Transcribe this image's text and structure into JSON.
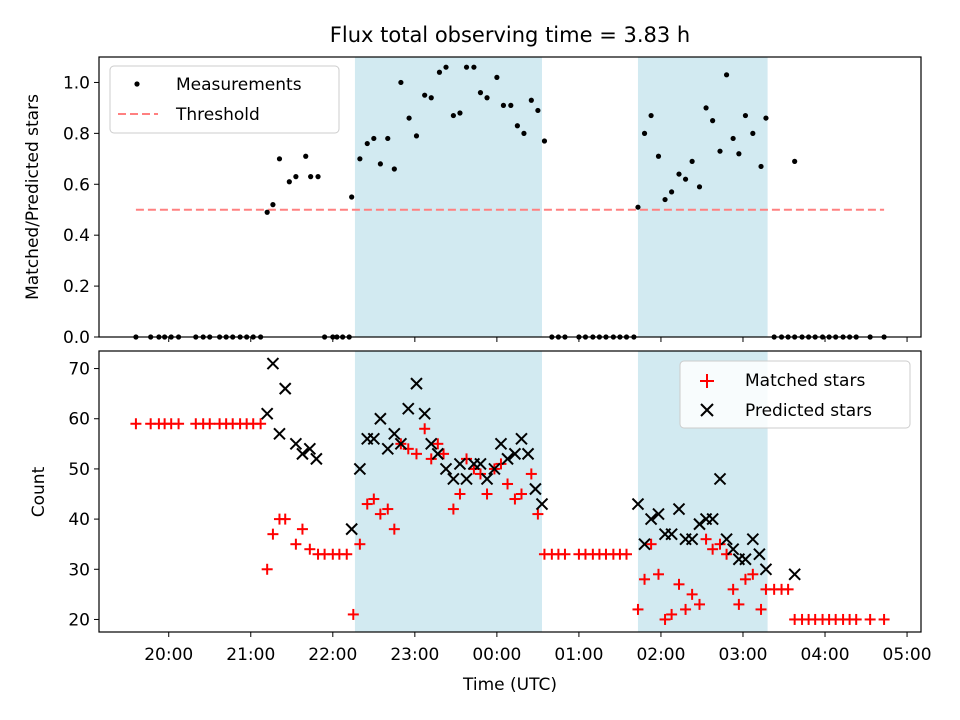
{
  "title": "Flux total observing time = 3.83 h",
  "colors": {
    "shade": "#add8e6",
    "matched": "#ff0000",
    "predicted": "#000000",
    "threshold": "#ff8080"
  },
  "chart_data": [
    {
      "type": "scatter",
      "ylabel": "Matched/Predicted stars",
      "ylim": [
        0,
        1.1
      ],
      "yticks": [
        "0.0",
        "0.2",
        "0.4",
        "0.6",
        "0.8",
        "1.0"
      ],
      "shaded_intervals_hours": [
        [
          22.27,
          24.55
        ],
        [
          25.72,
          27.3
        ]
      ],
      "legend": {
        "position": "upper-left",
        "measurements": "Measurements",
        "threshold": "Threshold"
      },
      "threshold": {
        "value": 0.5,
        "x_start_hours": 19.6,
        "x_end_hours": 28.72
      },
      "series": [
        {
          "name": "Measurements",
          "marker": "dot",
          "points": [
            [
              19.6,
              0
            ],
            [
              19.78,
              0
            ],
            [
              19.88,
              0
            ],
            [
              19.95,
              0
            ],
            [
              20.03,
              0
            ],
            [
              20.12,
              0
            ],
            [
              20.33,
              0
            ],
            [
              20.42,
              0
            ],
            [
              20.5,
              0
            ],
            [
              20.62,
              0
            ],
            [
              20.7,
              0
            ],
            [
              20.78,
              0
            ],
            [
              20.87,
              0
            ],
            [
              20.95,
              0
            ],
            [
              21.03,
              0
            ],
            [
              21.12,
              0
            ],
            [
              21.2,
              0.49
            ],
            [
              21.27,
              0.52
            ],
            [
              21.35,
              0.7
            ],
            [
              21.47,
              0.61
            ],
            [
              21.55,
              0.63
            ],
            [
              21.67,
              0.71
            ],
            [
              21.73,
              0.63
            ],
            [
              21.82,
              0.63
            ],
            [
              21.9,
              0
            ],
            [
              22.0,
              0
            ],
            [
              22.05,
              0
            ],
            [
              22.12,
              0
            ],
            [
              22.2,
              0
            ],
            [
              22.23,
              0.55
            ],
            [
              22.33,
              0.7
            ],
            [
              22.42,
              0.76
            ],
            [
              22.5,
              0.78
            ],
            [
              22.58,
              0.68
            ],
            [
              22.67,
              0.78
            ],
            [
              22.75,
              0.66
            ],
            [
              22.83,
              1.0
            ],
            [
              22.93,
              0.86
            ],
            [
              23.02,
              0.79
            ],
            [
              23.12,
              0.95
            ],
            [
              23.2,
              0.94
            ],
            [
              23.3,
              1.04
            ],
            [
              23.38,
              1.06
            ],
            [
              23.47,
              0.87
            ],
            [
              23.55,
              0.88
            ],
            [
              23.63,
              1.06
            ],
            [
              23.72,
              1.06
            ],
            [
              23.8,
              0.96
            ],
            [
              23.88,
              0.94
            ],
            [
              24.0,
              1.02
            ],
            [
              24.08,
              0.91
            ],
            [
              24.17,
              0.91
            ],
            [
              24.25,
              0.83
            ],
            [
              24.33,
              0.8
            ],
            [
              24.42,
              0.93
            ],
            [
              24.5,
              0.89
            ],
            [
              24.58,
              0.77
            ],
            [
              24.67,
              0
            ],
            [
              24.75,
              0
            ],
            [
              24.83,
              0
            ],
            [
              25.0,
              0
            ],
            [
              25.08,
              0
            ],
            [
              25.17,
              0
            ],
            [
              25.25,
              0
            ],
            [
              25.33,
              0
            ],
            [
              25.42,
              0
            ],
            [
              25.5,
              0
            ],
            [
              25.58,
              0
            ],
            [
              25.67,
              0
            ],
            [
              25.72,
              0.51
            ],
            [
              25.8,
              0.8
            ],
            [
              25.88,
              0.87
            ],
            [
              25.97,
              0.71
            ],
            [
              26.05,
              0.54
            ],
            [
              26.13,
              0.57
            ],
            [
              26.22,
              0.64
            ],
            [
              26.3,
              0.62
            ],
            [
              26.38,
              0.69
            ],
            [
              26.47,
              0.59
            ],
            [
              26.55,
              0.9
            ],
            [
              26.63,
              0.85
            ],
            [
              26.72,
              0.73
            ],
            [
              26.8,
              1.03
            ],
            [
              26.88,
              0.78
            ],
            [
              26.95,
              0.72
            ],
            [
              27.03,
              0.87
            ],
            [
              27.12,
              0.8
            ],
            [
              27.22,
              0.67
            ],
            [
              27.28,
              0.86
            ],
            [
              27.38,
              0
            ],
            [
              27.47,
              0
            ],
            [
              27.55,
              0
            ],
            [
              27.63,
              0
            ],
            [
              27.63,
              0.69
            ],
            [
              27.72,
              0
            ],
            [
              27.8,
              0
            ],
            [
              27.88,
              0
            ],
            [
              27.97,
              0
            ],
            [
              28.05,
              0
            ],
            [
              28.13,
              0
            ],
            [
              28.22,
              0
            ],
            [
              28.3,
              0
            ],
            [
              28.38,
              0
            ],
            [
              28.55,
              0
            ],
            [
              28.72,
              0
            ]
          ]
        }
      ]
    },
    {
      "type": "scatter",
      "xlabel": "Time (UTC)",
      "ylabel": "Count",
      "ylim": [
        17.5,
        73.5
      ],
      "yticks": [
        "20",
        "30",
        "40",
        "50",
        "60",
        "70"
      ],
      "xlim_hours": [
        19.15,
        29.17
      ],
      "xtick_hours": [
        20,
        21,
        22,
        23,
        24,
        25,
        26,
        27,
        28,
        29
      ],
      "xticks": [
        "20:00",
        "21:00",
        "22:00",
        "23:00",
        "00:00",
        "01:00",
        "02:00",
        "03:00",
        "04:00",
        "05:00"
      ],
      "shaded_intervals_hours": [
        [
          22.27,
          24.55
        ],
        [
          25.72,
          27.3
        ]
      ],
      "legend": {
        "position": "upper-right"
      },
      "series": [
        {
          "name": "Matched stars",
          "marker": "plus",
          "points": [
            [
              19.6,
              59
            ],
            [
              19.78,
              59
            ],
            [
              19.88,
              59
            ],
            [
              19.95,
              59
            ],
            [
              20.03,
              59
            ],
            [
              20.12,
              59
            ],
            [
              20.33,
              59
            ],
            [
              20.42,
              59
            ],
            [
              20.5,
              59
            ],
            [
              20.62,
              59
            ],
            [
              20.7,
              59
            ],
            [
              20.78,
              59
            ],
            [
              20.87,
              59
            ],
            [
              20.95,
              59
            ],
            [
              21.03,
              59
            ],
            [
              21.12,
              59
            ],
            [
              21.2,
              30
            ],
            [
              21.27,
              37
            ],
            [
              21.35,
              40
            ],
            [
              21.42,
              40
            ],
            [
              21.55,
              35
            ],
            [
              21.63,
              38
            ],
            [
              21.72,
              34
            ],
            [
              21.82,
              33
            ],
            [
              21.9,
              33
            ],
            [
              22.0,
              33
            ],
            [
              22.08,
              33
            ],
            [
              22.17,
              33
            ],
            [
              22.25,
              21
            ],
            [
              22.33,
              35
            ],
            [
              22.42,
              43
            ],
            [
              22.5,
              44
            ],
            [
              22.58,
              41
            ],
            [
              22.67,
              42
            ],
            [
              22.75,
              38
            ],
            [
              22.83,
              55
            ],
            [
              22.92,
              54
            ],
            [
              23.02,
              53
            ],
            [
              23.12,
              58
            ],
            [
              23.2,
              52
            ],
            [
              23.28,
              55
            ],
            [
              23.35,
              53
            ],
            [
              23.47,
              42
            ],
            [
              23.55,
              45
            ],
            [
              23.63,
              52
            ],
            [
              23.72,
              50
            ],
            [
              23.8,
              49
            ],
            [
              23.88,
              45
            ],
            [
              23.97,
              50
            ],
            [
              24.05,
              51
            ],
            [
              24.13,
              47
            ],
            [
              24.22,
              44
            ],
            [
              24.3,
              45
            ],
            [
              24.42,
              49
            ],
            [
              24.5,
              41
            ],
            [
              24.58,
              33
            ],
            [
              24.67,
              33
            ],
            [
              24.75,
              33
            ],
            [
              24.83,
              33
            ],
            [
              25.0,
              33
            ],
            [
              25.08,
              33
            ],
            [
              25.17,
              33
            ],
            [
              25.25,
              33
            ],
            [
              25.33,
              33
            ],
            [
              25.42,
              33
            ],
            [
              25.5,
              33
            ],
            [
              25.58,
              33
            ],
            [
              25.72,
              22
            ],
            [
              25.8,
              28
            ],
            [
              25.88,
              35
            ],
            [
              25.97,
              29
            ],
            [
              26.05,
              20
            ],
            [
              26.13,
              21
            ],
            [
              26.22,
              27
            ],
            [
              26.3,
              22
            ],
            [
              26.38,
              25
            ],
            [
              26.47,
              23
            ],
            [
              26.55,
              36
            ],
            [
              26.63,
              34
            ],
            [
              26.72,
              35
            ],
            [
              26.8,
              33
            ],
            [
              26.88,
              26
            ],
            [
              26.95,
              23
            ],
            [
              27.03,
              28
            ],
            [
              27.12,
              29
            ],
            [
              27.22,
              22
            ],
            [
              27.28,
              26
            ],
            [
              27.38,
              26
            ],
            [
              27.47,
              26
            ],
            [
              27.55,
              26
            ],
            [
              27.63,
              20
            ],
            [
              27.72,
              20
            ],
            [
              27.8,
              20
            ],
            [
              27.88,
              20
            ],
            [
              27.97,
              20
            ],
            [
              28.05,
              20
            ],
            [
              28.13,
              20
            ],
            [
              28.22,
              20
            ],
            [
              28.3,
              20
            ],
            [
              28.38,
              20
            ],
            [
              28.55,
              20
            ],
            [
              28.72,
              20
            ]
          ]
        },
        {
          "name": "Predicted stars",
          "marker": "x",
          "points": [
            [
              21.2,
              61
            ],
            [
              21.27,
              71
            ],
            [
              21.35,
              57
            ],
            [
              21.42,
              66
            ],
            [
              21.55,
              55
            ],
            [
              21.63,
              53
            ],
            [
              21.72,
              54
            ],
            [
              21.8,
              52
            ],
            [
              22.23,
              38
            ],
            [
              22.33,
              50
            ],
            [
              22.42,
              56
            ],
            [
              22.5,
              56
            ],
            [
              22.58,
              60
            ],
            [
              22.67,
              54
            ],
            [
              22.75,
              57
            ],
            [
              22.83,
              55
            ],
            [
              22.92,
              62
            ],
            [
              23.02,
              67
            ],
            [
              23.12,
              61
            ],
            [
              23.2,
              55
            ],
            [
              23.28,
              53
            ],
            [
              23.38,
              50
            ],
            [
              23.47,
              48
            ],
            [
              23.55,
              51
            ],
            [
              23.63,
              48
            ],
            [
              23.72,
              51
            ],
            [
              23.8,
              51
            ],
            [
              23.88,
              48
            ],
            [
              23.97,
              50
            ],
            [
              24.05,
              55
            ],
            [
              24.13,
              52
            ],
            [
              24.22,
              53
            ],
            [
              24.3,
              56
            ],
            [
              24.38,
              53
            ],
            [
              24.47,
              46
            ],
            [
              24.55,
              43
            ],
            [
              25.72,
              43
            ],
            [
              25.8,
              35
            ],
            [
              25.88,
              40
            ],
            [
              25.97,
              41
            ],
            [
              26.05,
              37
            ],
            [
              26.13,
              37
            ],
            [
              26.22,
              42
            ],
            [
              26.3,
              36
            ],
            [
              26.38,
              36
            ],
            [
              26.47,
              39
            ],
            [
              26.55,
              40
            ],
            [
              26.63,
              40
            ],
            [
              26.72,
              48
            ],
            [
              26.8,
              36
            ],
            [
              26.88,
              34
            ],
            [
              26.95,
              32
            ],
            [
              27.03,
              32
            ],
            [
              27.12,
              36
            ],
            [
              27.2,
              33
            ],
            [
              27.28,
              30
            ],
            [
              27.63,
              29
            ]
          ]
        }
      ]
    }
  ]
}
